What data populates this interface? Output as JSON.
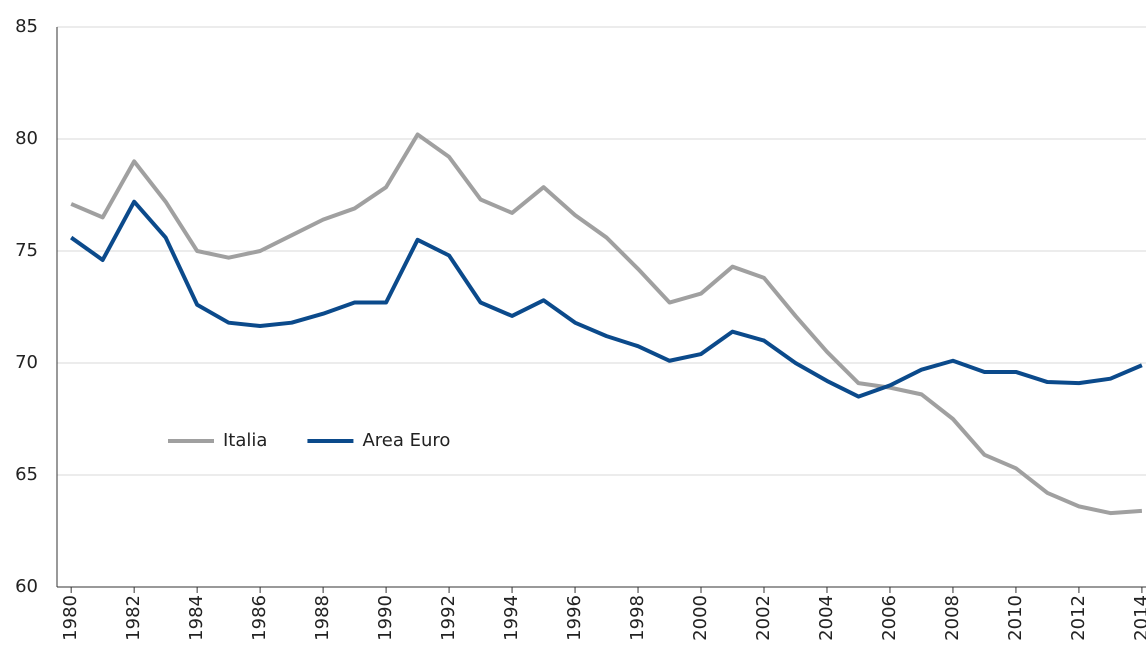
{
  "chart_data": {
    "type": "line",
    "x": [
      1980,
      1981,
      1982,
      1983,
      1984,
      1985,
      1986,
      1987,
      1988,
      1989,
      1990,
      1991,
      1992,
      1993,
      1994,
      1995,
      1996,
      1997,
      1998,
      1999,
      2000,
      2001,
      2002,
      2003,
      2004,
      2005,
      2006,
      2007,
      2008,
      2009,
      2010,
      2011,
      2012,
      2013,
      2014
    ],
    "series": [
      {
        "name": "Italia",
        "color": "#a0a0a0",
        "values": [
          77.1,
          76.5,
          79.0,
          77.2,
          75.0,
          74.7,
          75.0,
          75.7,
          76.4,
          76.9,
          77.85,
          80.2,
          79.2,
          77.3,
          76.7,
          77.85,
          76.6,
          75.6,
          74.2,
          72.7,
          73.1,
          74.3,
          73.8,
          72.1,
          70.5,
          69.1,
          68.9,
          68.6,
          67.5,
          65.9,
          65.3,
          64.2,
          63.6,
          63.3,
          63.4
        ]
      },
      {
        "name": "Area Euro",
        "color": "#0b4a8b",
        "values": [
          75.6,
          74.6,
          77.2,
          75.6,
          72.6,
          71.8,
          71.65,
          71.8,
          72.2,
          72.7,
          72.7,
          75.5,
          74.8,
          72.7,
          72.1,
          72.8,
          71.8,
          71.2,
          70.75,
          70.1,
          70.4,
          71.4,
          71.0,
          70.0,
          69.2,
          68.5,
          69.0,
          69.7,
          70.1,
          69.6,
          69.6,
          69.15,
          69.1,
          69.3,
          69.9
        ]
      }
    ],
    "xlim": [
      1979.55,
      2014.13
    ],
    "xticks": [
      1980,
      1982,
      1984,
      1986,
      1988,
      1990,
      1992,
      1994,
      1996,
      1998,
      2000,
      2002,
      2004,
      2006,
      2008,
      2010,
      2012,
      2014
    ],
    "ylim": [
      60,
      85
    ],
    "yticks": [
      60,
      65,
      70,
      75,
      80,
      85
    ],
    "grid": true,
    "legend": "left"
  }
}
